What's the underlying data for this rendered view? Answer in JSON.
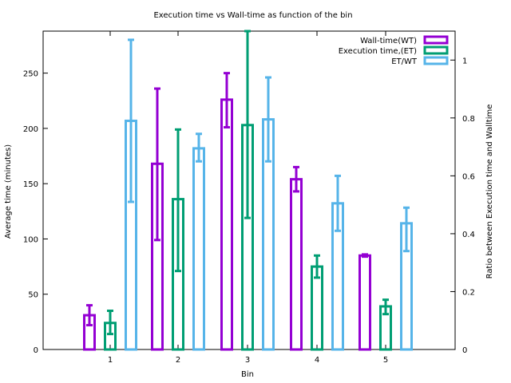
{
  "chart_data": {
    "type": "bar",
    "title": "Execution time vs Wall-time as function of the bin",
    "xlabel": "Bin",
    "ylabel": "Average time (minutes)",
    "y2label": "Ratio between Execution time and Walltime",
    "categories": [
      "1",
      "2",
      "3",
      "4",
      "5"
    ],
    "ylim": [
      0,
      288
    ],
    "y2lim": [
      0,
      1.1
    ],
    "yticks": [
      0,
      50,
      100,
      150,
      200,
      250
    ],
    "y2ticks": [
      0,
      0.2,
      0.4,
      0.6,
      0.8,
      1
    ],
    "y2ticklabels": [
      "0",
      "0.2",
      "0.4",
      "0.6",
      "0.8",
      "1"
    ],
    "legend_position": "top-right",
    "grid": false,
    "series": [
      {
        "name": "Wall-time(WT)",
        "axis": "left",
        "color": "#9400d3",
        "values": [
          31,
          168,
          226,
          154,
          85
        ],
        "err_low": [
          22,
          99,
          201,
          143,
          84
        ],
        "err_high": [
          40,
          236,
          250,
          165,
          86
        ]
      },
      {
        "name": "Execution time,(ET)",
        "axis": "left",
        "color": "#009e73",
        "values": [
          24,
          136,
          203,
          75,
          39
        ],
        "err_low": [
          14,
          71,
          119,
          65,
          32
        ],
        "err_high": [
          35,
          199,
          288,
          85,
          45
        ]
      },
      {
        "name": "ET/WT",
        "axis": "right",
        "color": "#56b4e9",
        "values": [
          0.79,
          0.695,
          0.795,
          0.505,
          0.436
        ],
        "err_low": [
          0.51,
          0.65,
          0.65,
          0.41,
          0.34
        ],
        "err_high": [
          1.07,
          0.745,
          0.94,
          0.6,
          0.49
        ]
      }
    ]
  }
}
